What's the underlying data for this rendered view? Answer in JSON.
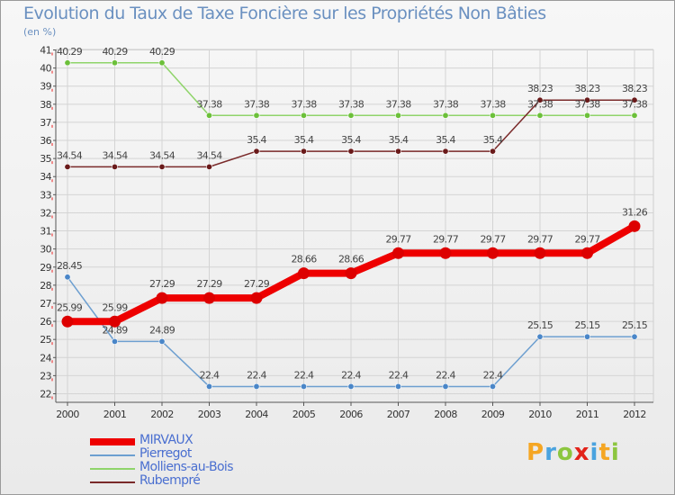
{
  "title": "Evolution du Taux de Taxe Foncière sur les Propriétés Non Bâties",
  "unit": "(en %)",
  "logo": {
    "text": "Proxiti",
    "colors": [
      "#f5a623",
      "#4aa3df",
      "#8cc63f",
      "#e2231a",
      "#4aa3df",
      "#f5a623",
      "#8cc63f"
    ]
  },
  "chart_data": {
    "type": "line",
    "title": "Evolution du Taux de Taxe Foncière sur les Propriétés Non Bâties",
    "ylabel": "(en %)",
    "ylim": [
      22,
      41
    ],
    "yticks": [
      22,
      23,
      24,
      25,
      26,
      27,
      28,
      29,
      30,
      31,
      32,
      33,
      34,
      35,
      36,
      37,
      38,
      39,
      40,
      41
    ],
    "categories": [
      "2000",
      "2001",
      "2002",
      "2003",
      "2004",
      "2005",
      "2006",
      "2007",
      "2008",
      "2009",
      "2010",
      "2011",
      "2012"
    ],
    "series": [
      {
        "name": "MIRVAUX",
        "color": "#ee0000",
        "width": 8,
        "dot": 6.5,
        "dotColor": "#dd0000",
        "values": [
          25.99,
          25.99,
          27.29,
          27.29,
          27.29,
          28.66,
          28.66,
          29.77,
          29.77,
          29.77,
          29.77,
          29.77,
          31.26
        ],
        "labels": [
          "25.99",
          "25.99",
          "27.29",
          "27.29",
          "27.29",
          "28.66",
          "28.66",
          "29.77",
          "29.77",
          "29.77",
          "29.77",
          "29.77",
          "31.26"
        ]
      },
      {
        "name": "Pierregot",
        "color": "#6d9fd0",
        "width": 1.5,
        "dot": 3.2,
        "dotColor": "#4a86c8",
        "values": [
          28.45,
          24.89,
          24.89,
          22.4,
          22.4,
          22.4,
          22.4,
          22.4,
          22.4,
          22.4,
          25.15,
          25.15,
          25.15
        ],
        "labels": [
          "28.45",
          "24.89",
          "24.89",
          "22.4",
          "22.4",
          "22.4",
          "22.4",
          "22.4",
          "22.4",
          "22.4",
          "25.15",
          "25.15",
          "25.15"
        ]
      },
      {
        "name": "Molliens-au-Bois",
        "color": "#8fd46a",
        "width": 1.5,
        "dot": 3.2,
        "dotColor": "#6cc03a",
        "values": [
          40.29,
          40.29,
          40.29,
          37.38,
          37.38,
          37.38,
          37.38,
          37.38,
          37.38,
          37.38,
          37.38,
          37.38,
          37.38
        ],
        "labels": [
          "40.29",
          "40.29",
          "40.29",
          "37.38",
          "37.38",
          "37.38",
          "37.38",
          "37.38",
          "37.38",
          "37.38",
          "37.38",
          "37.38",
          "37.38"
        ]
      },
      {
        "name": "Rubempré",
        "color": "#7a2a2a",
        "width": 1.5,
        "dot": 3.2,
        "dotColor": "#6a1a1a",
        "values": [
          34.54,
          34.54,
          34.54,
          34.54,
          35.4,
          35.4,
          35.4,
          35.4,
          35.4,
          35.4,
          38.23,
          38.23,
          38.23
        ],
        "labels": [
          "34.54",
          "34.54",
          "34.54",
          "34.54",
          "35.4",
          "35.4",
          "35.4",
          "35.4",
          "35.4",
          "35.4",
          "38.23",
          "38.23",
          "38.23"
        ]
      }
    ]
  }
}
